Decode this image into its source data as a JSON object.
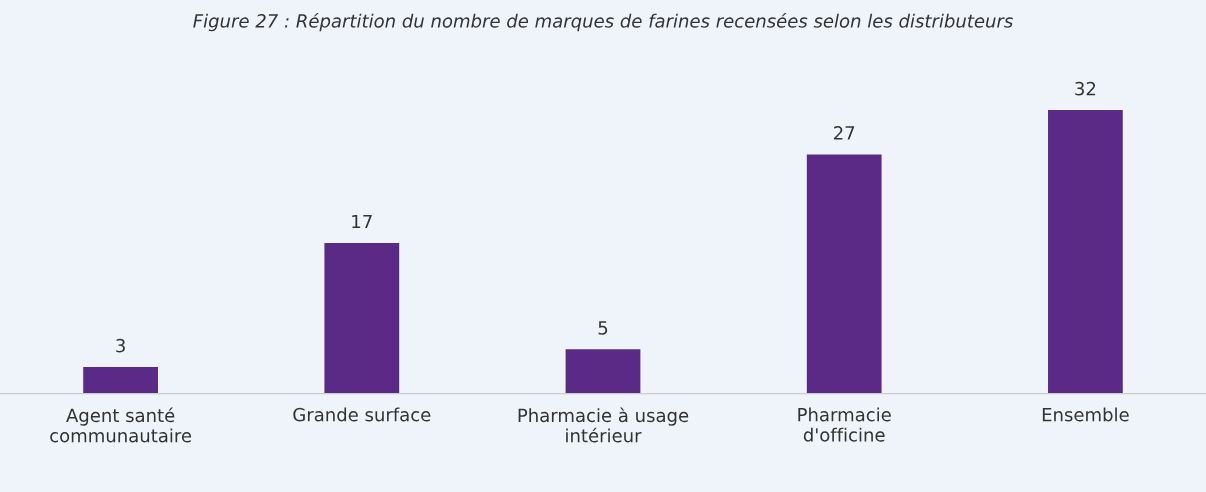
{
  "chart_data": {
    "type": "bar",
    "title": "Figure 27 : Répartition du nombre de marques de farines recensées selon les distributeurs",
    "categories": [
      "Agent santé\ncommunautaire",
      "Grande surface",
      "Pharmacie à usage\nintérieur",
      "Pharmacie\nd'officine",
      "Ensemble"
    ],
    "values": [
      3,
      17,
      5,
      27,
      32
    ],
    "color": "#5b2a86",
    "data_labels": true,
    "grid": false,
    "legend": false
  }
}
